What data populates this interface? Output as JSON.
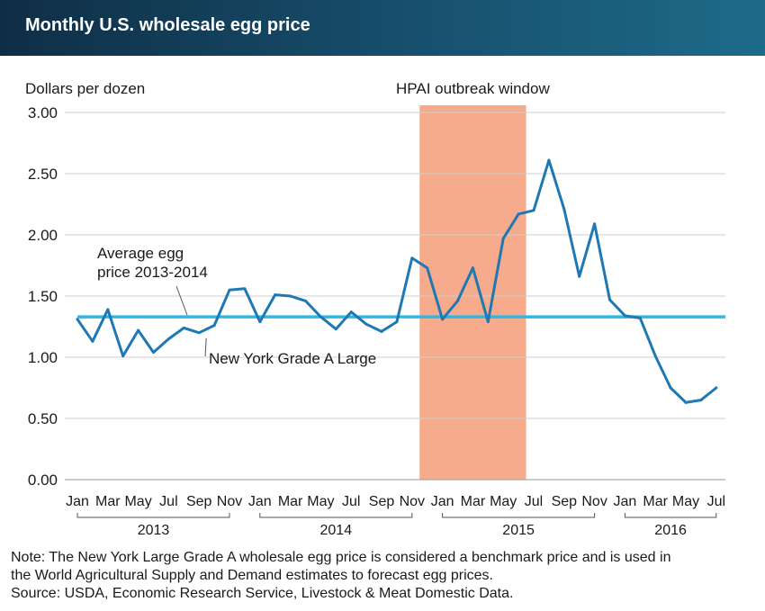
{
  "header": {
    "title": "Monthly U.S. wholesale egg price"
  },
  "chart_data": {
    "type": "line",
    "title": "Monthly U.S. wholesale egg price",
    "ylabel": "Dollars per dozen",
    "xlabel": "",
    "ylim": [
      0,
      3
    ],
    "y_ticks": [
      0,
      0.5,
      1,
      1.5,
      2,
      2.5,
      3
    ],
    "y_tick_labels": [
      "0.00",
      "0.50",
      "1.00",
      "1.50",
      "2.00",
      "2.50",
      "3.00"
    ],
    "x_tick_labels": [
      "Jan",
      "Mar",
      "May",
      "Jul",
      "Sep",
      "Nov",
      "Jan",
      "Mar",
      "May",
      "Jul",
      "Sep",
      "Nov",
      "Jan",
      "Mar",
      "May",
      "Jul",
      "Sep",
      "Nov",
      "Jan",
      "Mar",
      "May",
      "Jul"
    ],
    "years": [
      {
        "label": "2013",
        "start_month": 0,
        "end_month": 10
      },
      {
        "label": "2014",
        "start_month": 12,
        "end_month": 22
      },
      {
        "label": "2015",
        "start_month": 24,
        "end_month": 34
      },
      {
        "label": "2016",
        "start_month": 36,
        "end_month": 42
      }
    ],
    "grid": true,
    "series": [
      {
        "name": "New York Grade A Large",
        "color": "#1f78b4",
        "values": [
          1.31,
          1.13,
          1.39,
          1.01,
          1.22,
          1.04,
          1.15,
          1.24,
          1.2,
          1.26,
          1.55,
          1.56,
          1.29,
          1.51,
          1.5,
          1.46,
          1.33,
          1.23,
          1.37,
          1.27,
          1.21,
          1.29,
          1.81,
          1.73,
          1.31,
          1.46,
          1.73,
          1.29,
          1.97,
          2.17,
          2.2,
          2.61,
          2.21,
          1.66,
          2.09,
          1.47,
          1.34,
          1.32,
          1.01,
          0.75,
          0.63,
          0.65,
          0.75
        ]
      },
      {
        "name": "Average egg price 2013-2014",
        "color": "#2eb8e6",
        "constant": 1.33
      }
    ],
    "shaded_region": {
      "label": "HPAI outbreak window",
      "start_month": 22.5,
      "end_month": 29.5,
      "color": "#f5ab8c"
    },
    "annotations": [
      {
        "lines": [
          "Average egg",
          "price 2013-2014"
        ],
        "target": "Average egg price 2013-2014"
      },
      {
        "lines": [
          "New York Grade A Large"
        ],
        "target": "New York Grade A Large"
      }
    ]
  },
  "notes": {
    "line1": "Note: The New York Large Grade A wholesale egg price is considered a benchmark price and is used in",
    "line2": "the World Agricultural Supply and Demand estimates to forecast egg prices.",
    "line3": "Source: USDA, Economic Research Service, Livestock & Meat Domestic Data."
  }
}
